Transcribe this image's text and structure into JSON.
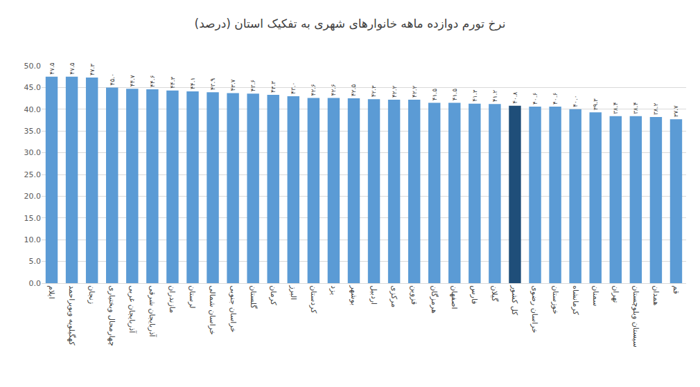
{
  "chart_data": {
    "type": "bar",
    "title": "نرخ تورم دوازده ماهه خانوارهای شهری به تفکیک استان (درصد)",
    "categories": [
      "ایلام",
      "کهگیلویه وبویراحمد",
      "زنجان",
      "چهارمحال وبختیاری",
      "آذربایجان غربی",
      "آذربایجان شرقی",
      "مازندران",
      "لرستان",
      "خراسان شمالی",
      "خراسان جنوبی",
      "گلستان",
      "کرمان",
      "البرز",
      "کردستان",
      "یزد",
      "بوشهر",
      "اردبیل",
      "مرکزی",
      "قزوین",
      "هرمزگان",
      "اصفهان",
      "فارس",
      "گیلان",
      "کل کشور",
      "خراسان رضوی",
      "خوزستان",
      "کرمانشاه",
      "سمنان",
      "تهران",
      "سیستان وبلوچستان",
      "همدان",
      "قم"
    ],
    "values": [
      47.5,
      47.5,
      47.3,
      45.0,
      44.7,
      44.6,
      44.3,
      44.1,
      43.9,
      43.7,
      43.6,
      43.3,
      43.0,
      42.6,
      42.6,
      42.5,
      42.3,
      42.2,
      42.2,
      41.5,
      41.5,
      41.3,
      41.2,
      40.8,
      40.6,
      40.6,
      40.0,
      39.3,
      38.4,
      38.4,
      38.2,
      37.7
    ],
    "value_labels": [
      "۴۷.۵",
      "۴۷.۵",
      "۴۷.۳",
      "۴۵.۰",
      "۴۴.۷",
      "۴۴.۶",
      "۴۴.۳",
      "۴۴.۱",
      "۴۳.۹",
      "۴۳.۷",
      "۴۳.۶",
      "۴۳.۳",
      "۴۳.۰",
      "۴۲.۶",
      "۴۲.۶",
      "۴۲.۵",
      "۴۲.۳",
      "۴۲.۲",
      "۴۲.۲",
      "۴۱.۵",
      "۴۱.۵",
      "۴۱.۳",
      "۴۱.۲",
      "۴۰.۸",
      "۴۰.۶",
      "۴۰.۶",
      "۴۰.۰",
      "۳۹.۳",
      "۳۸.۴",
      "۳۸.۴",
      "۳۸.۲",
      "۳۷.۷"
    ],
    "colors": [
      "#5b9bd5",
      "#5b9bd5",
      "#5b9bd5",
      "#5b9bd5",
      "#5b9bd5",
      "#5b9bd5",
      "#5b9bd5",
      "#5b9bd5",
      "#5b9bd5",
      "#5b9bd5",
      "#5b9bd5",
      "#5b9bd5",
      "#5b9bd5",
      "#5b9bd5",
      "#5b9bd5",
      "#5b9bd5",
      "#5b9bd5",
      "#5b9bd5",
      "#5b9bd5",
      "#5b9bd5",
      "#5b9bd5",
      "#5b9bd5",
      "#5b9bd5",
      "#1f4e79",
      "#5b9bd5",
      "#5b9bd5",
      "#5b9bd5",
      "#5b9bd5",
      "#5b9bd5",
      "#5b9bd5",
      "#5b9bd5",
      "#5b9bd5"
    ],
    "ylim": [
      0,
      50
    ],
    "yticks": [
      {
        "value": 0,
        "label": "0.0"
      },
      {
        "value": 5,
        "label": "5.0"
      },
      {
        "value": 10,
        "label": "10.0"
      },
      {
        "value": 15,
        "label": "15.0"
      },
      {
        "value": 20,
        "label": "20.0"
      },
      {
        "value": 25,
        "label": "25.0"
      },
      {
        "value": 30,
        "label": "30.0"
      },
      {
        "value": 35,
        "label": "35.0"
      },
      {
        "value": 40,
        "label": "40.0"
      },
      {
        "value": 45,
        "label": "45.0"
      },
      {
        "value": 50,
        "label": "50.0"
      }
    ],
    "grid": true,
    "data_labels": true
  }
}
